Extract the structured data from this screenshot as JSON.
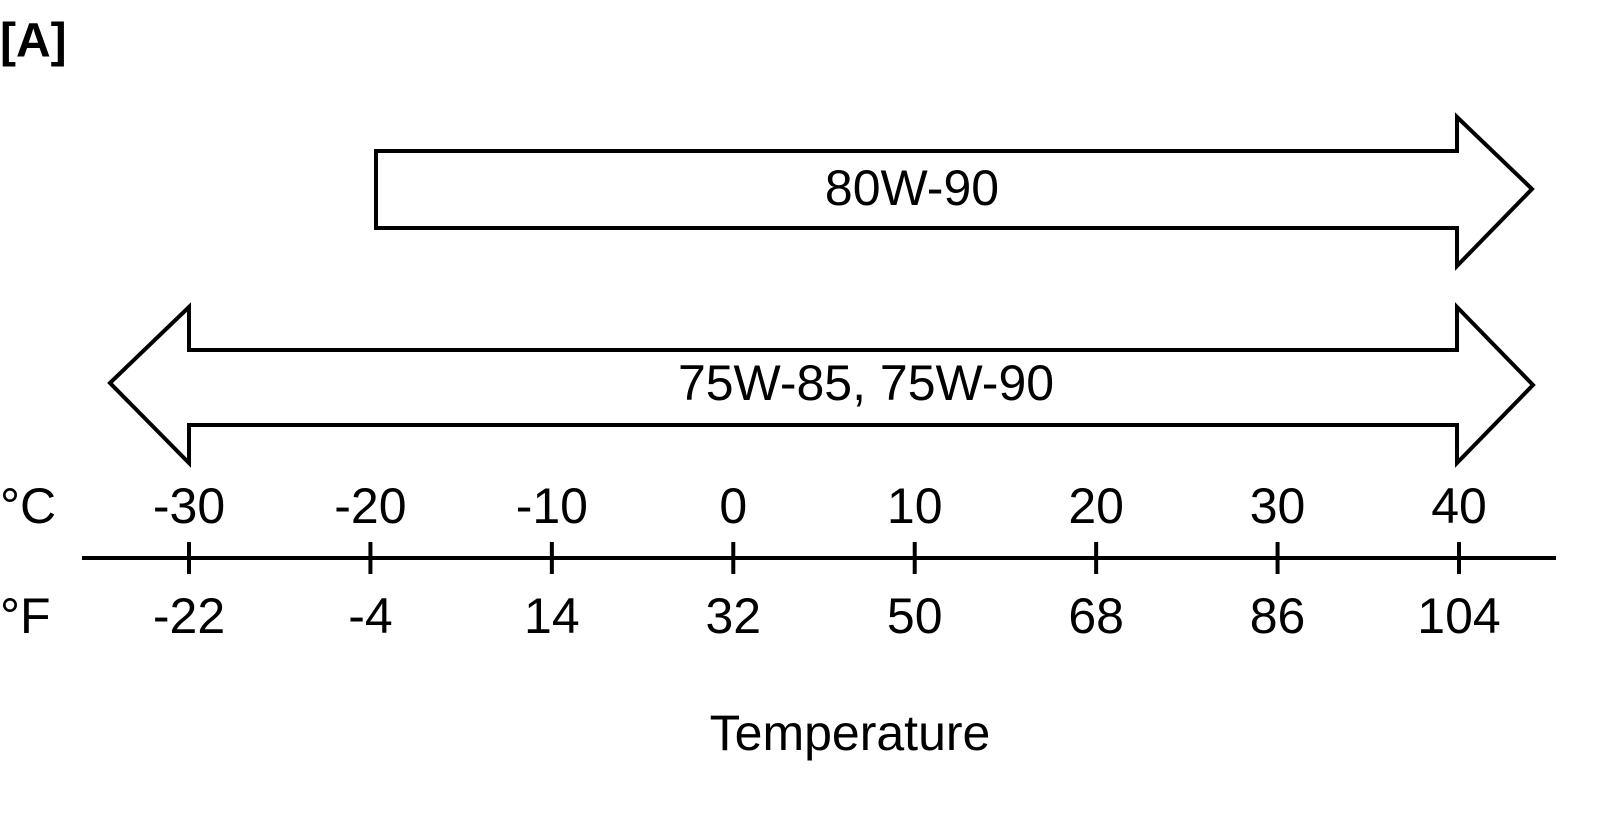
{
  "label": "[A]",
  "arrows": [
    {
      "label": "80W-90"
    },
    {
      "label": "75W-85, 75W-90"
    }
  ],
  "scale": {
    "celsius_unit": "°C",
    "fahrenheit_unit": "°F",
    "celsius": [
      -30,
      -20,
      -10,
      0,
      10,
      20,
      30,
      40
    ],
    "fahrenheit": [
      -22,
      -4,
      14,
      32,
      50,
      68,
      86,
      104
    ],
    "title": "Temperature"
  }
}
